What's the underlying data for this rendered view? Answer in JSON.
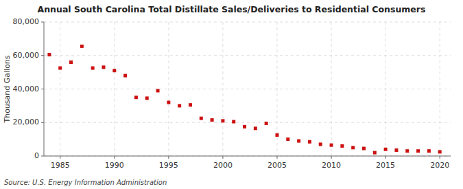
{
  "chart_data": {
    "type": "scatter",
    "title": "Annual South Carolina Total Distillate Sales/Deliveries to Residential Consumers",
    "ylabel": "Thousand Gallons",
    "annotations": [
      "Source: U.S. Energy Information Administration"
    ],
    "x": [
      1984,
      1985,
      1986,
      1987,
      1988,
      1989,
      1990,
      1991,
      1992,
      1993,
      1994,
      1995,
      1996,
      1997,
      1998,
      1999,
      2000,
      2001,
      2002,
      2003,
      2004,
      2005,
      2006,
      2007,
      2008,
      2009,
      2010,
      2011,
      2012,
      2013,
      2014,
      2015,
      2016,
      2017,
      2018,
      2019,
      2020
    ],
    "values": [
      60500,
      52500,
      56000,
      65500,
      52500,
      53000,
      51000,
      48000,
      35000,
      34500,
      39000,
      32000,
      30000,
      30500,
      22500,
      21500,
      21000,
      20500,
      17500,
      16500,
      19500,
      12500,
      10000,
      9000,
      8500,
      7000,
      6500,
      6000,
      5000,
      4500,
      2000,
      4000,
      3500,
      3000,
      3000,
      3000,
      2500
    ],
    "color": "#cc1111",
    "marker": "square",
    "xlim": [
      1983.5,
      2021
    ],
    "xticks": [
      1985,
      1990,
      1995,
      2000,
      2005,
      2010,
      2015,
      2020
    ],
    "ylim": [
      0,
      80000
    ],
    "yticks": [
      0,
      {
        "value": 20000,
        "label": "20,000"
      },
      {
        "value": 40000,
        "label": "40,000"
      },
      {
        "value": 60000,
        "label": "60,000"
      },
      {
        "value": 80000,
        "label": "80,000"
      }
    ],
    "grid": true
  }
}
